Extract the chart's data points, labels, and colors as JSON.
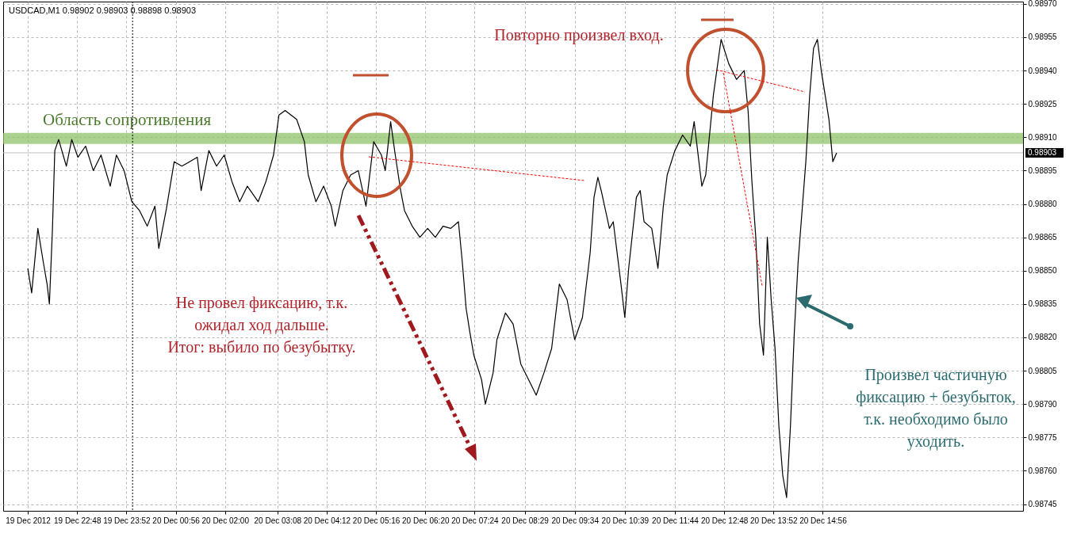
{
  "chart_data": {
    "type": "line",
    "title": "USDCAD,M1  0.98902 0.98903 0.98898 0.98903",
    "x": [
      "2012-12-19T21:44",
      "2012-12-19T21:49",
      "2012-12-19T21:57",
      "2012-12-19T22:04",
      "2012-12-19T22:09",
      "2012-12-19T22:12",
      "2012-12-19T22:16",
      "2012-12-19T22:19",
      "2012-12-19T22:24",
      "2012-12-19T22:34",
      "2012-12-19T22:41",
      "2012-12-19T22:49",
      "2012-12-19T22:59",
      "2012-12-19T23:09",
      "2012-12-19T23:19",
      "2012-12-19T23:31",
      "2012-12-19T23:39",
      "2012-12-19T23:49",
      "2012-12-19T23:59",
      "2012-12-20T00:09",
      "2012-12-20T00:19",
      "2012-12-20T00:29",
      "2012-12-20T00:34",
      "2012-12-20T00:44",
      "2012-12-20T00:54",
      "2012-12-20T01:04",
      "2012-12-20T01:14",
      "2012-12-20T01:24",
      "2012-12-20T01:29",
      "2012-12-20T01:39",
      "2012-12-20T01:49",
      "2012-12-20T01:59",
      "2012-12-20T02:09",
      "2012-12-20T02:19",
      "2012-12-20T02:29",
      "2012-12-20T02:43",
      "2012-12-20T02:53",
      "2012-12-20T03:03",
      "2012-12-20T03:10",
      "2012-12-20T03:18",
      "2012-12-20T03:33",
      "2012-12-20T03:43",
      "2012-12-20T03:48",
      "2012-12-20T03:58",
      "2012-12-20T04:08",
      "2012-12-20T04:18",
      "2012-12-20T04:23",
      "2012-12-20T04:33",
      "2012-12-20T04:43",
      "2012-12-20T04:53",
      "2012-12-20T05:03",
      "2012-12-20T05:13",
      "2012-12-20T05:23",
      "2012-12-20T05:28",
      "2012-12-20T05:35",
      "2012-12-20T05:41",
      "2012-12-20T05:48",
      "2012-12-20T05:53",
      "2012-12-20T06:03",
      "2012-12-20T06:13",
      "2012-12-20T06:23",
      "2012-12-20T06:33",
      "2012-12-20T06:43",
      "2012-12-20T06:53",
      "2012-12-20T07:03",
      "2012-12-20T07:08",
      "2012-12-20T07:13",
      "2012-12-20T07:18",
      "2012-12-20T07:23",
      "2012-12-20T07:33",
      "2012-12-20T07:38",
      "2012-12-20T07:48",
      "2012-12-20T07:53",
      "2012-12-20T08:04",
      "2012-12-20T08:14",
      "2012-12-20T08:24",
      "2012-12-20T08:34",
      "2012-12-20T08:44",
      "2012-12-20T08:54",
      "2012-12-20T09:04",
      "2012-12-20T09:14",
      "2012-12-20T09:24",
      "2012-12-20T09:34",
      "2012-12-20T09:44",
      "2012-12-20T09:54",
      "2012-12-20T09:59",
      "2012-12-20T10:04",
      "2012-12-20T10:09",
      "2012-12-20T10:19",
      "2012-12-20T10:24",
      "2012-12-20T10:34",
      "2012-12-20T10:39",
      "2012-12-20T10:44",
      "2012-12-20T10:54",
      "2012-12-20T10:59",
      "2012-12-20T11:04",
      "2012-12-20T11:14",
      "2012-12-20T11:22",
      "2012-12-20T11:29",
      "2012-12-20T11:34",
      "2012-12-20T11:44",
      "2012-12-20T11:54",
      "2012-12-20T12:04",
      "2012-12-20T12:09",
      "2012-12-20T12:19",
      "2012-12-20T12:24",
      "2012-12-20T12:34",
      "2012-12-20T12:44",
      "2012-12-20T12:54",
      "2012-12-20T13:04",
      "2012-12-20T13:14",
      "2012-12-20T13:19",
      "2012-12-20T13:24",
      "2012-12-20T13:29",
      "2012-12-20T13:34",
      "2012-12-20T13:39",
      "2012-12-20T13:44",
      "2012-12-20T13:49",
      "2012-12-20T13:54",
      "2012-12-20T13:59",
      "2012-12-20T14:04",
      "2012-12-20T14:09",
      "2012-12-20T14:14",
      "2012-12-20T14:19",
      "2012-12-20T14:24",
      "2012-12-20T14:34",
      "2012-12-20T14:39",
      "2012-12-20T14:44",
      "2012-12-20T14:49",
      "2012-12-20T14:54",
      "2012-12-20T14:59",
      "2012-12-20T15:04",
      "2012-12-20T15:09",
      "2012-12-20T15:14"
    ],
    "series": [
      {
        "color": "#000000",
        "values": [
          0.98851,
          0.9884,
          0.98869,
          0.98854,
          0.98844,
          0.98835,
          0.98869,
          0.98904,
          0.98909,
          0.98897,
          0.98909,
          0.98901,
          0.98906,
          0.98895,
          0.98902,
          0.98888,
          0.98902,
          0.98895,
          0.98881,
          0.98877,
          0.9887,
          0.98879,
          0.9886,
          0.98878,
          0.98899,
          0.98897,
          0.98899,
          0.98901,
          0.98886,
          0.98904,
          0.98897,
          0.98902,
          0.9889,
          0.98881,
          0.98888,
          0.98881,
          0.9889,
          0.98902,
          0.9892,
          0.98922,
          0.98918,
          0.98908,
          0.98893,
          0.98881,
          0.98888,
          0.98879,
          0.9887,
          0.98886,
          0.98893,
          0.98895,
          0.98879,
          0.98908,
          0.98902,
          0.98895,
          0.98917,
          0.98902,
          0.98886,
          0.98877,
          0.9887,
          0.98865,
          0.98869,
          0.98865,
          0.9887,
          0.98869,
          0.98872,
          0.98854,
          0.98833,
          0.98822,
          0.98812,
          0.98801,
          0.9879,
          0.98804,
          0.98819,
          0.98831,
          0.98826,
          0.98808,
          0.98801,
          0.98794,
          0.98804,
          0.98815,
          0.98844,
          0.98837,
          0.98819,
          0.98829,
          0.98858,
          0.98883,
          0.98892,
          0.98885,
          0.98869,
          0.98872,
          0.98844,
          0.98829,
          0.98851,
          0.98883,
          0.98886,
          0.98872,
          0.98869,
          0.98851,
          0.98879,
          0.98893,
          0.98904,
          0.98911,
          0.98906,
          0.98917,
          0.98888,
          0.98893,
          0.98929,
          0.98954,
          0.98943,
          0.98936,
          0.9894,
          0.98922,
          0.9889,
          0.98865,
          0.98826,
          0.98812,
          0.98865,
          0.98837,
          0.98815,
          0.9878,
          0.98758,
          0.98748,
          0.9878,
          0.98822,
          0.98854,
          0.98899,
          0.98929,
          0.9895,
          0.98954,
          0.9894,
          0.98929,
          0.98918,
          0.98899,
          0.98903
        ]
      }
    ],
    "xlim": [
      "2012-12-19T21:12",
      "2012-12-20T19:16"
    ],
    "xticks": [
      {
        "value": "2012-12-19T21:44",
        "label": "19 Dec 2012"
      },
      {
        "value": "2012-12-19T22:48",
        "label": "19 Dec 22:48"
      },
      {
        "value": "2012-12-19T23:52",
        "label": "19 Dec 23:52"
      },
      {
        "value": "2012-12-20T00:56",
        "label": "20 Dec 00:56"
      },
      {
        "value": "2012-12-20T02:00",
        "label": "20 Dec 02:00"
      },
      {
        "value": "2012-12-20T03:08",
        "label": "20 Dec 03:08"
      },
      {
        "value": "2012-12-20T04:12",
        "label": "20 Dec 04:12"
      },
      {
        "value": "2012-12-20T05:16",
        "label": "20 Dec 05:16"
      },
      {
        "value": "2012-12-20T06:20",
        "label": "20 Dec 06:20"
      },
      {
        "value": "2012-12-20T07:24",
        "label": "20 Dec 07:24"
      },
      {
        "value": "2012-12-20T08:29",
        "label": "20 Dec 08:29"
      },
      {
        "value": "2012-12-20T09:34",
        "label": "20 Dec 09:34"
      },
      {
        "value": "2012-12-20T10:39",
        "label": "20 Dec 10:39"
      },
      {
        "value": "2012-12-20T11:44",
        "label": "20 Dec 11:44"
      },
      {
        "value": "2012-12-20T12:48",
        "label": "20 Dec 12:48"
      },
      {
        "value": "2012-12-20T13:52",
        "label": "20 Dec 13:52"
      },
      {
        "value": "2012-12-20T14:56",
        "label": "20 Dec 14:56"
      }
    ],
    "ylim": [
      0.98742,
      0.98971
    ],
    "yticks": [
      0.98745,
      {
        "value": 0.9876,
        "label": "0.98760"
      },
      0.98775,
      {
        "value": 0.9879,
        "label": "0.98790"
      },
      0.98805,
      {
        "value": 0.9882,
        "label": "0.98820"
      },
      0.98835,
      {
        "value": 0.9885,
        "label": "0.98850"
      },
      0.98865,
      {
        "value": 0.9888,
        "label": "0.98880"
      },
      0.98895,
      {
        "value": 0.9891,
        "label": "0.98910"
      },
      0.98925,
      {
        "value": 0.9894,
        "label": "0.98940"
      },
      0.98955,
      {
        "value": 0.9897,
        "label": "0.98970"
      }
    ],
    "grid": true,
    "ref_lines": [
      {
        "axis": "y",
        "value": 0.98903,
        "label": "0.98903",
        "color": "#c0c0c0",
        "line_style": "solid"
      },
      {
        "axis": "x",
        "value": "2012-12-20T00:00",
        "color": "#000000",
        "line_style": "dotted"
      }
    ],
    "bands": [
      {
        "axis": "y",
        "from": 0.98907,
        "to": 0.98912,
        "label": "Область сопротивления",
        "color": "#8fc46a"
      }
    ],
    "annotations": [
      "Повторно произвел вход.",
      "Не провел фиксацию, т.к.\nожидал ход дальше.\nИтог: выбило по безубытку.",
      "Произвел частичную\nфиксацию + безубыток,\nт.к. необходимо было\nуходить."
    ]
  }
}
